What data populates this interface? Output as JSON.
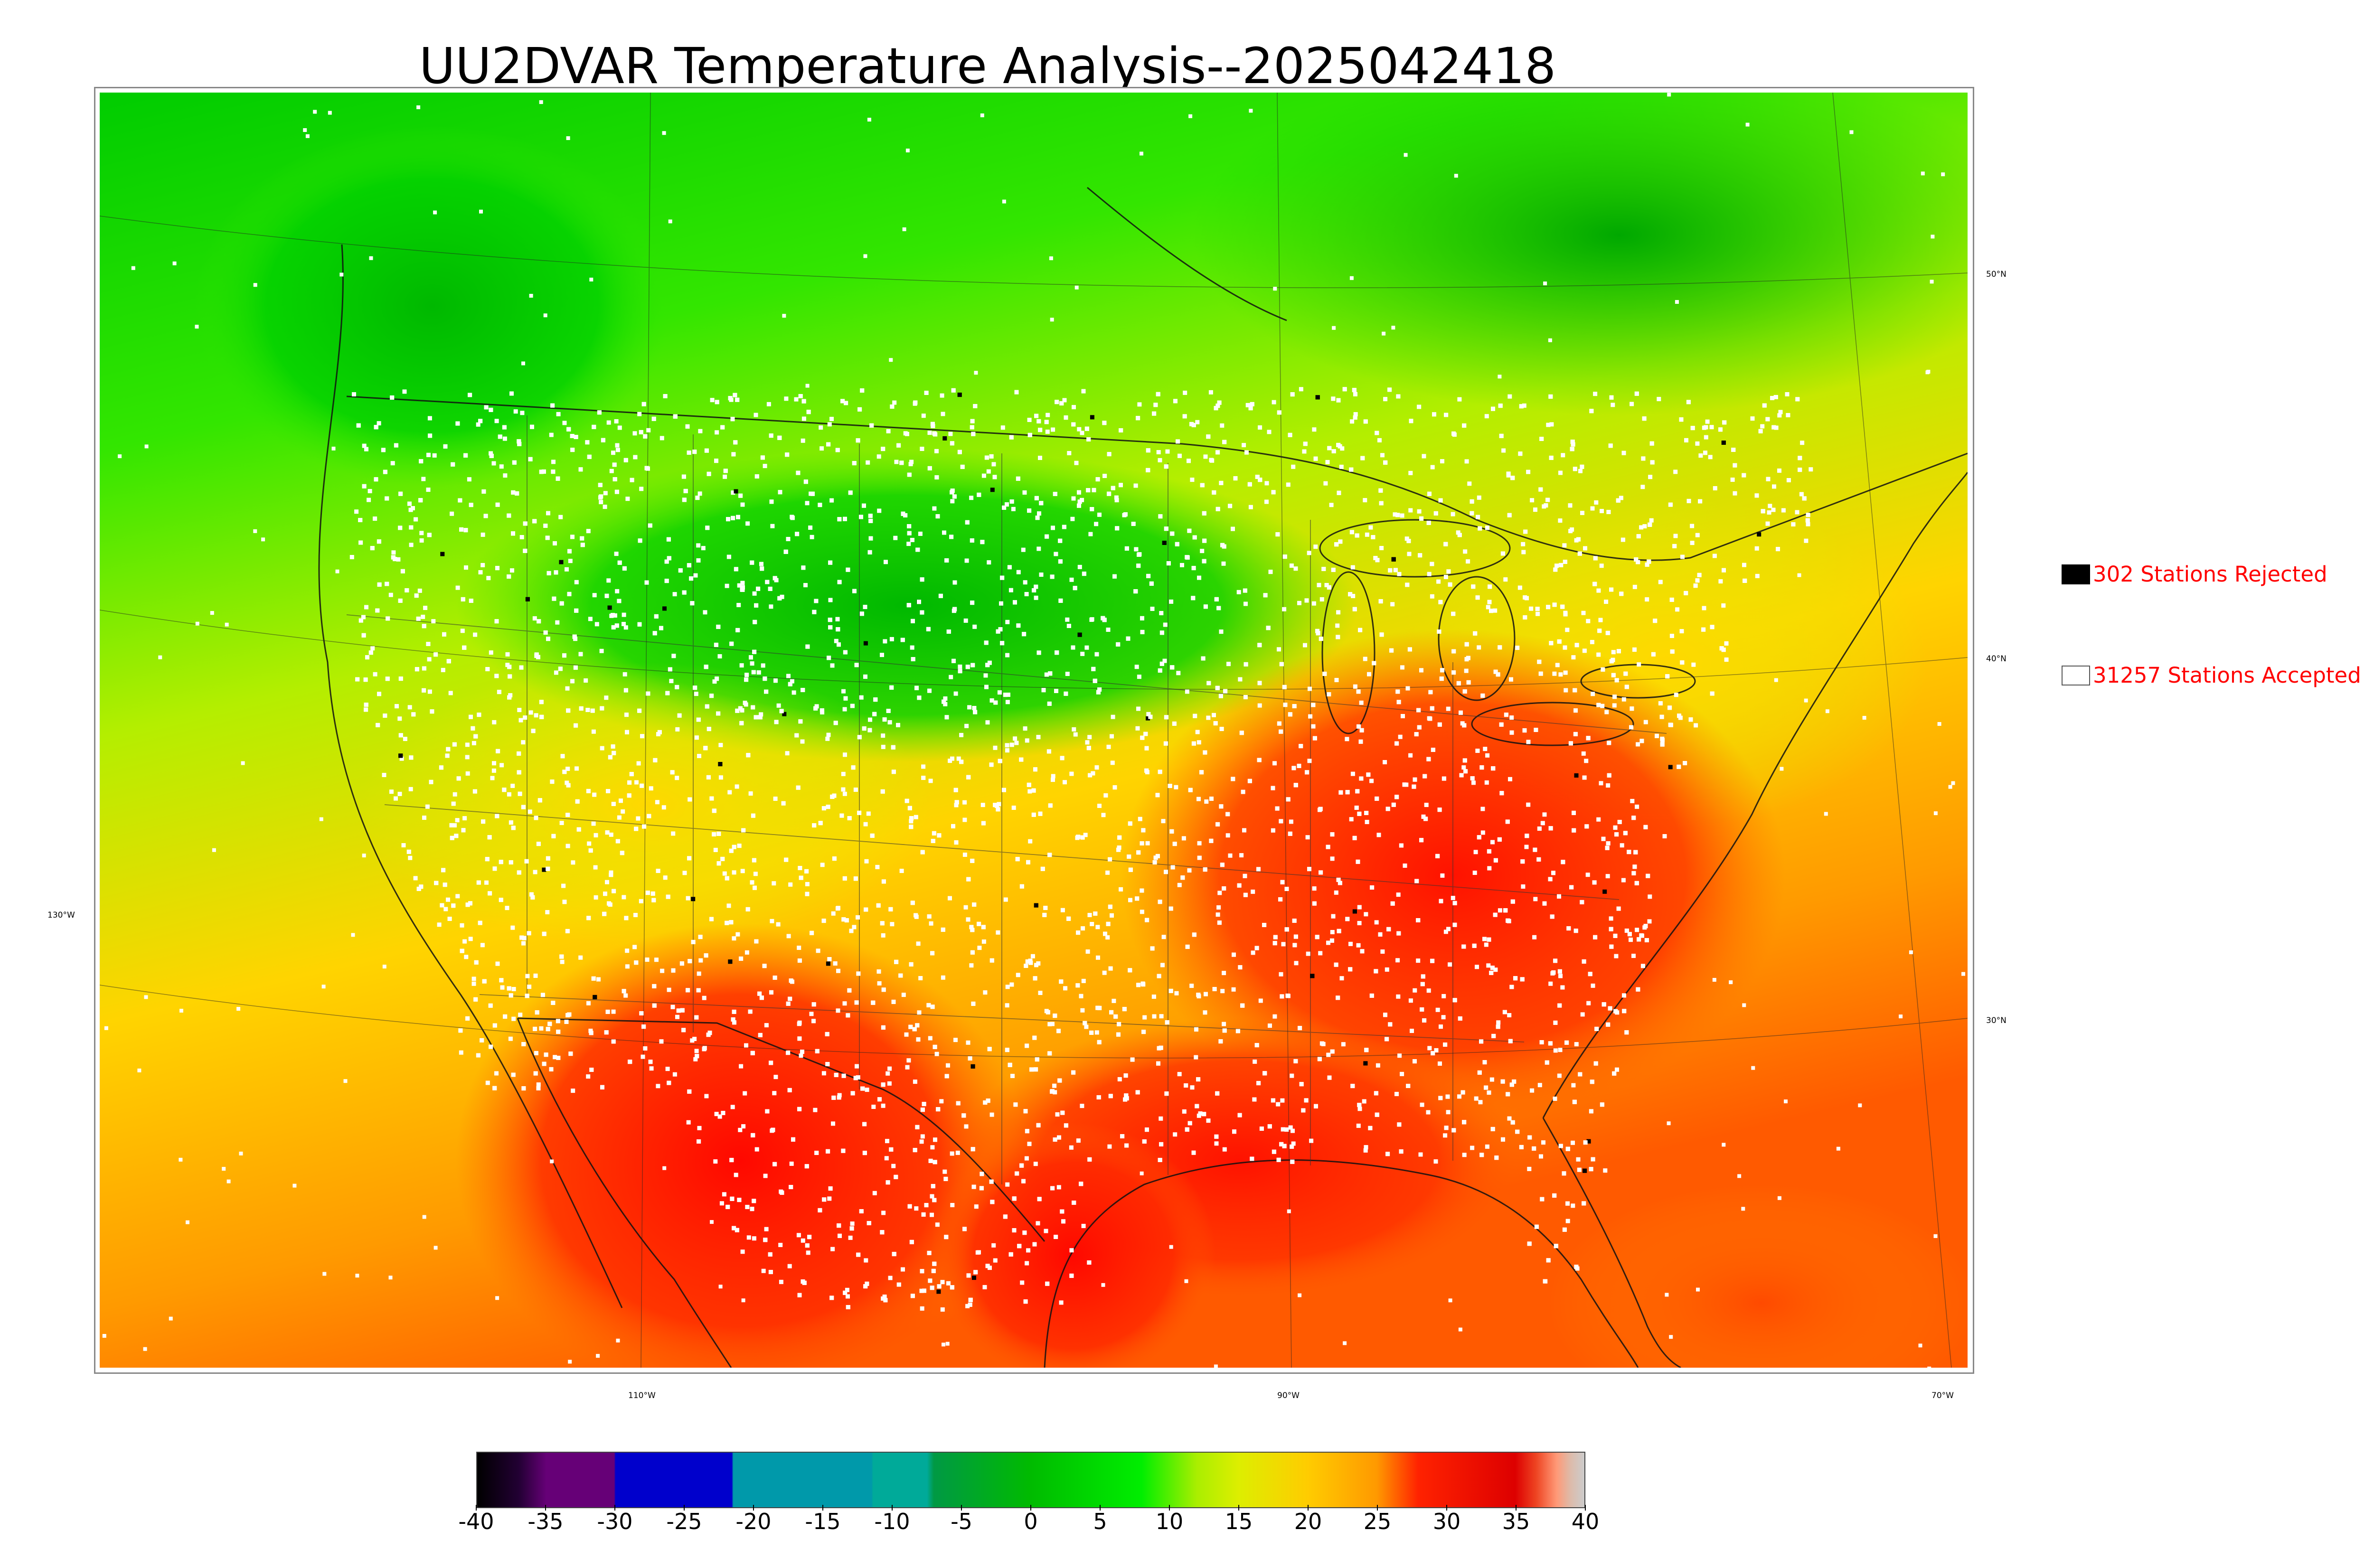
{
  "title": "UU2DVAR Temperature Analysis--2025042418",
  "graticule": {
    "lat_labels": [
      "50°N",
      "40°N",
      "30°N"
    ],
    "lon_labels": [
      "130°W",
      "110°W",
      "90°W",
      "70°W"
    ]
  },
  "legend": {
    "rejected": {
      "label": "302 Stations Rejected",
      "box_color": "#000000"
    },
    "accepted": {
      "label": "31257 Stations Accepted",
      "box_color": "#ffffff"
    }
  },
  "colorbar": {
    "min": -40,
    "max": 40,
    "tick_labels": [
      "-40",
      "-35",
      "-30",
      "-25",
      "-20",
      "-15",
      "-10",
      "-5",
      "0",
      "5",
      "10",
      "15",
      "20",
      "25",
      "30",
      "35",
      "40"
    ],
    "stops": [
      {
        "value": -40,
        "color": "#000000"
      },
      {
        "value": -37,
        "color": "#220033"
      },
      {
        "value": -35,
        "color": "#660077"
      },
      {
        "value": -30.1,
        "color": "#660077"
      },
      {
        "value": -30,
        "color": "#0000cc"
      },
      {
        "value": -21.6,
        "color": "#0000cc"
      },
      {
        "value": -21.5,
        "color": "#0099aa"
      },
      {
        "value": -11.5,
        "color": "#0099aa"
      },
      {
        "value": -11.4,
        "color": "#00aa99"
      },
      {
        "value": -7.5,
        "color": "#00aa99"
      },
      {
        "value": -7,
        "color": "#009944"
      },
      {
        "value": 0,
        "color": "#00bb00"
      },
      {
        "value": 8,
        "color": "#00ee00"
      },
      {
        "value": 12,
        "color": "#aaee00"
      },
      {
        "value": 15,
        "color": "#ddee00"
      },
      {
        "value": 20,
        "color": "#ffcc00"
      },
      {
        "value": 25,
        "color": "#ff9900"
      },
      {
        "value": 28,
        "color": "#ff2200"
      },
      {
        "value": 35,
        "color": "#dd0000"
      },
      {
        "value": 36.5,
        "color": "#ee4422"
      },
      {
        "value": 38,
        "color": "#ff9977"
      },
      {
        "value": 39,
        "color": "#ddbbaa"
      },
      {
        "value": 40,
        "color": "#cccccc"
      }
    ]
  },
  "colors": {
    "cold": "#00c400",
    "cool": "#33e600",
    "mild": "#c8f000",
    "warm": "#ffc800",
    "hot": "#ff6000",
    "very_hot": "#ff1000",
    "rejected_marker": "#000000",
    "accepted_marker": "#ffffff"
  }
}
